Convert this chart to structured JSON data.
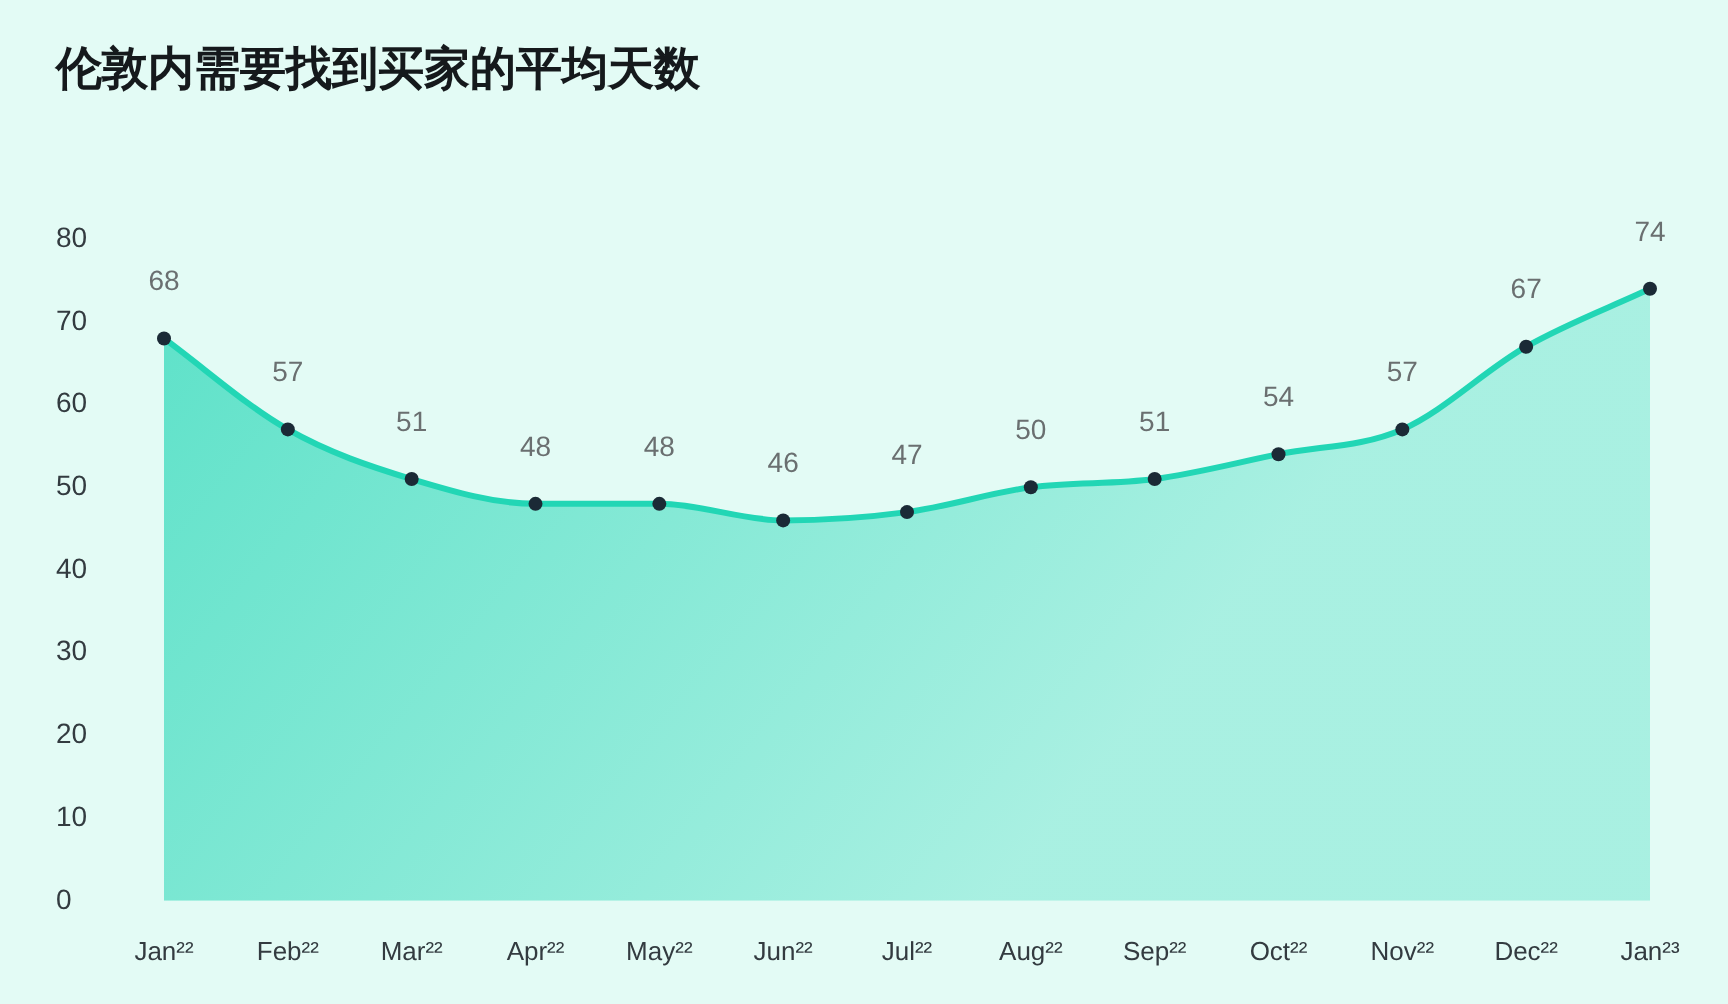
{
  "chart_data": {
    "type": "area",
    "title": "伦敦内需要找到买家的平均天数",
    "categories": [
      "Jan²²",
      "Feb²²",
      "Mar²²",
      "Apr²²",
      "May²²",
      "Jun²²",
      "Jul²²",
      "Aug²²",
      "Sep²²",
      "Oct²²",
      "Nov²²",
      "Dec²²",
      "Jan²³"
    ],
    "values": [
      68,
      57,
      51,
      48,
      48,
      46,
      47,
      50,
      51,
      54,
      57,
      67,
      74
    ],
    "color": "#22d6b5",
    "ylim": [
      0,
      80
    ],
    "yticks": [
      0,
      10,
      20,
      30,
      40,
      50,
      60,
      70,
      80
    ],
    "grid": false,
    "legend": false,
    "marker": "circle",
    "line_style": "solid",
    "data_labels": true
  }
}
